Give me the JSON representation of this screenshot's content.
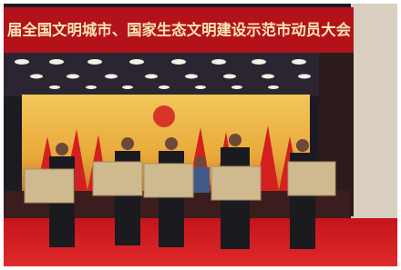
{
  "banner": {
    "text": "届全国文明城市、国家生态文明建设示范市动员大会"
  }
}
